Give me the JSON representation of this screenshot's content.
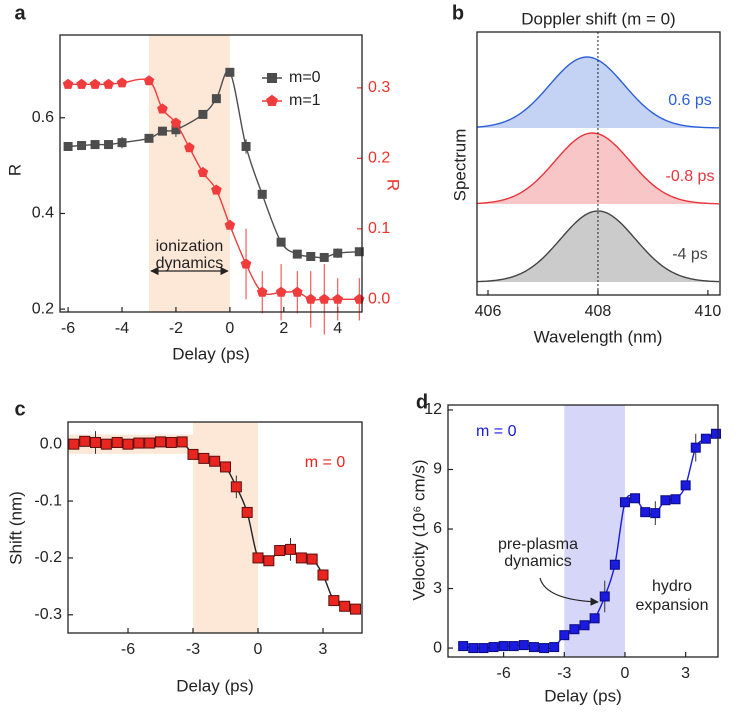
{
  "chart_data": [
    {
      "type": "line",
      "panel": "a",
      "xlabel": "Delay (ps)",
      "ylabel": "R",
      "y2label": "R",
      "y2_color": "#e8342c",
      "xlim": [
        -6.3,
        4.9
      ],
      "xticks": [
        -6,
        -4,
        -2,
        0,
        2,
        4
      ],
      "ylim": [
        0.194,
        0.773
      ],
      "yticks": [
        0.2,
        0.4,
        0.6
      ],
      "y2lim": [
        -0.018,
        0.375
      ],
      "y2ticks": [
        {
          "value": 0,
          "label": "0.0"
        },
        0.1,
        0.2,
        0.3
      ],
      "shade": [
        -3,
        0
      ],
      "shade_color": "#fde8d8",
      "legend": "upper right",
      "annotations": [
        "ionization",
        "dynamics"
      ],
      "series": [
        {
          "name": "m=0",
          "color": "#4d4d4d",
          "marker": "square",
          "x": [
            -6,
            -5.5,
            -5,
            -4.5,
            -4,
            -3,
            -2.5,
            -2,
            -1,
            -0.5,
            0,
            0.6,
            1.2,
            1.9,
            2.5,
            3,
            3.5,
            4,
            4.8
          ],
          "values": [
            0.54,
            0.542,
            0.544,
            0.544,
            0.548,
            0.557,
            0.572,
            0.575,
            0.607,
            0.64,
            0.695,
            0.54,
            0.44,
            0.34,
            0.315,
            0.31,
            0.308,
            0.317,
            0.32
          ],
          "errors": [
            null,
            null,
            null,
            null,
            0.012,
            null,
            null,
            0.015,
            null,
            null,
            null,
            0.015,
            null,
            null,
            null,
            null,
            null,
            0.01,
            null
          ]
        },
        {
          "name": "m=1",
          "color": "#f03c3c",
          "marker": "pentagon",
          "axis": "y2",
          "x": [
            -6,
            -5.5,
            -5,
            -4.5,
            -4,
            -3,
            -2.5,
            -2,
            -1.5,
            -1,
            -0.5,
            0,
            0.6,
            1.2,
            1.9,
            2.5,
            3,
            3.5,
            4,
            4.8
          ],
          "values": [
            0.305,
            0.305,
            0.305,
            0.305,
            0.307,
            0.31,
            0.27,
            0.25,
            0.215,
            0.18,
            0.155,
            0.105,
            0.05,
            0.01,
            0.01,
            0.01,
            0.0,
            0.0,
            0.0,
            0.0
          ],
          "errors": [
            null,
            null,
            null,
            null,
            null,
            null,
            null,
            null,
            null,
            null,
            null,
            null,
            0.05,
            0.03,
            0.04,
            0.03,
            0.04,
            0.05,
            0.03,
            0.03
          ]
        }
      ]
    },
    {
      "type": "spectrum",
      "panel": "b",
      "title": "Doppler shift (m = 0)",
      "xlabel": "Wavelength (nm)",
      "ylabel": "Spectrum",
      "xlim": [
        405.8,
        410.22
      ],
      "xticks": [
        406,
        408,
        410
      ],
      "vline": 408,
      "series": [
        {
          "name": "0.6 ps",
          "color": "#2b5fd9",
          "center": 407.8,
          "fwhm": 1.6
        },
        {
          "name": "-0.8 ps",
          "color": "#e8343a",
          "center": 407.9,
          "fwhm": 1.6
        },
        {
          "name": "-4 ps",
          "color": "#444444",
          "center": 408.0,
          "fwhm": 1.6
        }
      ]
    },
    {
      "type": "line",
      "panel": "c",
      "xlabel": "Delay (ps)",
      "ylabel": "Shift (nm)",
      "xlim": [
        -8.77,
        4.8
      ],
      "xticks": [
        -6,
        -3,
        0,
        3
      ],
      "ylim": [
        -0.332,
        0.039
      ],
      "yticks": [
        {
          "value": 0,
          "label": "0.0"
        },
        -0.1,
        -0.2,
        -0.3
      ],
      "shade": [
        -3,
        0
      ],
      "shade_color": "#fde8d8",
      "hband": [
        -0.017,
        0.017
      ],
      "annotations": [
        "m = 0"
      ],
      "annotation_color": "#e8251e",
      "series": [
        {
          "name": null,
          "color": "#e8251e",
          "line_color": "#222222",
          "marker": "square",
          "x": [
            -8.5,
            -8,
            -7.5,
            -7,
            -6.5,
            -6,
            -5.5,
            -5,
            -4.5,
            -4,
            -3.5,
            -3,
            -2.5,
            -2,
            -1.5,
            -1,
            -0.5,
            0,
            0.5,
            1,
            1.5,
            2,
            2.5,
            3,
            3.5,
            4,
            4.5
          ],
          "values": [
            0,
            0.005,
            0.003,
            0,
            0.003,
            0,
            0.002,
            0.002,
            0.004,
            0.003,
            0.004,
            -0.018,
            -0.025,
            -0.03,
            -0.04,
            -0.075,
            -0.12,
            -0.2,
            -0.205,
            -0.187,
            -0.185,
            -0.2,
            -0.202,
            -0.23,
            -0.275,
            -0.285,
            -0.29
          ],
          "errors": [
            null,
            null,
            0.02,
            null,
            null,
            null,
            null,
            null,
            null,
            null,
            null,
            null,
            null,
            null,
            null,
            0.02,
            null,
            null,
            null,
            null,
            0.02,
            null,
            null,
            null,
            null,
            null,
            null
          ]
        }
      ]
    },
    {
      "type": "line",
      "panel": "d",
      "xlabel": "Delay (ps)",
      "ylabel": "Velocity (10⁶ cm/s)",
      "xlim": [
        -8.75,
        4.6
      ],
      "xticks": [
        -6,
        -3,
        0,
        3
      ],
      "ylim": [
        -0.45,
        12.25
      ],
      "yticks": [
        0,
        3,
        6,
        9,
        12
      ],
      "shade": [
        -3,
        0
      ],
      "shade_color": "#d6d6f8",
      "annotations": [
        "m = 0",
        "pre-plasma",
        "dynamics",
        "hydro",
        "expansion"
      ],
      "annotation_color": "#1a1ae0",
      "series": [
        {
          "name": null,
          "color": "#1a1ae0",
          "marker": "square",
          "x": [
            -8,
            -7.5,
            -7,
            -6.5,
            -6,
            -5.5,
            -5,
            -4.5,
            -4,
            -3.5,
            -3,
            -2.5,
            -2,
            -1.5,
            -1,
            -0.5,
            0,
            0.5,
            1,
            1.5,
            2,
            2.5,
            3,
            3.5,
            4,
            4.5
          ],
          "values": [
            0.1,
            0,
            0,
            0.05,
            0.1,
            0.1,
            0.15,
            0.05,
            0,
            0.05,
            0.65,
            0.95,
            1.15,
            1.5,
            2.6,
            4.2,
            7.35,
            7.55,
            6.85,
            6.8,
            7.45,
            7.5,
            8.2,
            10.1,
            10.55,
            10.8
          ],
          "errors": [
            null,
            null,
            null,
            null,
            null,
            null,
            null,
            null,
            null,
            null,
            null,
            null,
            null,
            null,
            0.8,
            null,
            null,
            null,
            null,
            0.6,
            null,
            null,
            null,
            0.7,
            null,
            null
          ]
        }
      ]
    }
  ]
}
